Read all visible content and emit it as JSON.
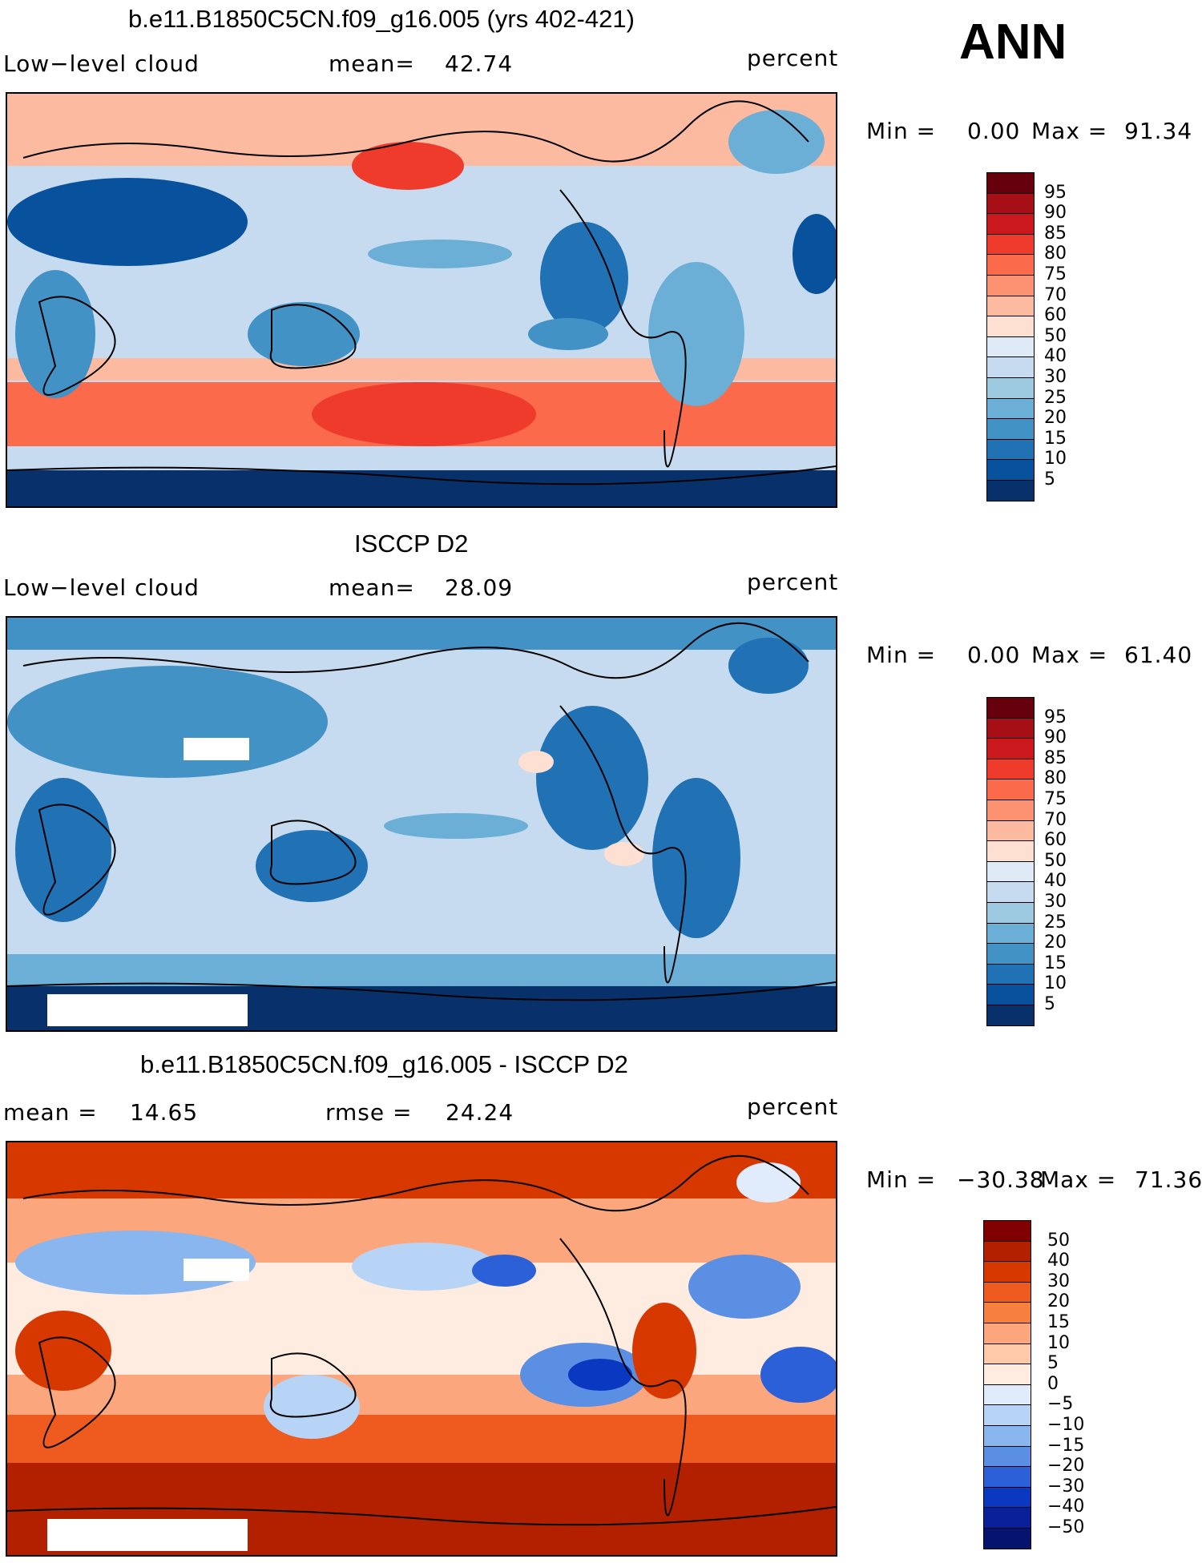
{
  "season": "ANN",
  "panels": [
    {
      "title": "b.e11.B1850C5CN.f09_g16.005 (yrs 402-421)",
      "left_label": "Low−level cloud",
      "stat1_label": "mean=",
      "stat1_value": "42.74",
      "stat2_label": "",
      "stat2_value": "",
      "units": "percent",
      "min_label": "Min =",
      "min_value": "0.00",
      "max_label": "Max =",
      "max_value": "91.34",
      "colorbar_labels": [
        "95",
        "90",
        "85",
        "80",
        "75",
        "70",
        "60",
        "50",
        "40",
        "30",
        "25",
        "20",
        "15",
        "10",
        "5"
      ],
      "colors": [
        "#67000d",
        "#a50f15",
        "#cb181d",
        "#ef3b2c",
        "#fb6a4a",
        "#fc9272",
        "#fcbba1",
        "#fee0d2",
        "#deebf7",
        "#c6dbef",
        "#9ecae1",
        "#6baed6",
        "#4292c6",
        "#2171b5",
        "#08519c",
        "#08306b"
      ]
    },
    {
      "title": "ISCCP D2",
      "left_label": "Low−level cloud",
      "stat1_label": "mean=",
      "stat1_value": "28.09",
      "stat2_label": "",
      "stat2_value": "",
      "units": "percent",
      "min_label": "Min =",
      "min_value": "0.00",
      "max_label": "Max =",
      "max_value": "61.40",
      "colorbar_labels": [
        "95",
        "90",
        "85",
        "80",
        "75",
        "70",
        "60",
        "50",
        "40",
        "30",
        "25",
        "20",
        "15",
        "10",
        "5"
      ],
      "colors": [
        "#67000d",
        "#a50f15",
        "#cb181d",
        "#ef3b2c",
        "#fb6a4a",
        "#fc9272",
        "#fcbba1",
        "#fee0d2",
        "#deebf7",
        "#c6dbef",
        "#9ecae1",
        "#6baed6",
        "#4292c6",
        "#2171b5",
        "#08519c",
        "#08306b"
      ]
    },
    {
      "title": "b.e11.B1850C5CN.f09_g16.005 - ISCCP D2",
      "left_label": "",
      "stat1_label": "mean =",
      "stat1_value": "14.65",
      "stat2_label": "rmse =",
      "stat2_value": "24.24",
      "units": "percent",
      "min_label": "Min =",
      "min_value": "−30.38",
      "max_label": "Max =",
      "max_value": "71.36",
      "colorbar_labels": [
        "50",
        "40",
        "30",
        "20",
        "15",
        "10",
        "5",
        "0",
        "−5",
        "−10",
        "−15",
        "−20",
        "−30",
        "−40",
        "−50"
      ],
      "colors": [
        "#800000",
        "#b22000",
        "#d73800",
        "#ef5a1f",
        "#f7803f",
        "#fba67c",
        "#fdc9a8",
        "#feece0",
        "#e0ecfb",
        "#b7d4f6",
        "#8ab6ef",
        "#5a8fe3",
        "#2b60d8",
        "#0b38c0",
        "#0a1f9a",
        "#061470"
      ]
    }
  ],
  "chart_data": [
    {
      "type": "heatmap",
      "title": "b.e11.B1850C5CN.f09_g16.005 (yrs 402-421)",
      "variable": "Low−level cloud",
      "units": "percent",
      "mean": 42.74,
      "min": 0.0,
      "max": 91.34,
      "contour_levels": [
        5,
        10,
        15,
        20,
        25,
        30,
        40,
        50,
        60,
        70,
        75,
        80,
        85,
        90,
        95
      ]
    },
    {
      "type": "heatmap",
      "title": "ISCCP D2",
      "variable": "Low−level cloud",
      "units": "percent",
      "mean": 28.09,
      "min": 0.0,
      "max": 61.4,
      "contour_levels": [
        5,
        10,
        15,
        20,
        25,
        30,
        40,
        50,
        60,
        70,
        75,
        80,
        85,
        90,
        95
      ]
    },
    {
      "type": "heatmap",
      "title": "b.e11.B1850C5CN.f09_g16.005 - ISCCP D2",
      "variable": "difference",
      "units": "percent",
      "mean": 14.65,
      "rmse": 24.24,
      "min": -30.38,
      "max": 71.36,
      "contour_levels": [
        -50,
        -40,
        -30,
        -20,
        -15,
        -10,
        -5,
        0,
        5,
        10,
        15,
        20,
        30,
        40,
        50
      ]
    }
  ]
}
